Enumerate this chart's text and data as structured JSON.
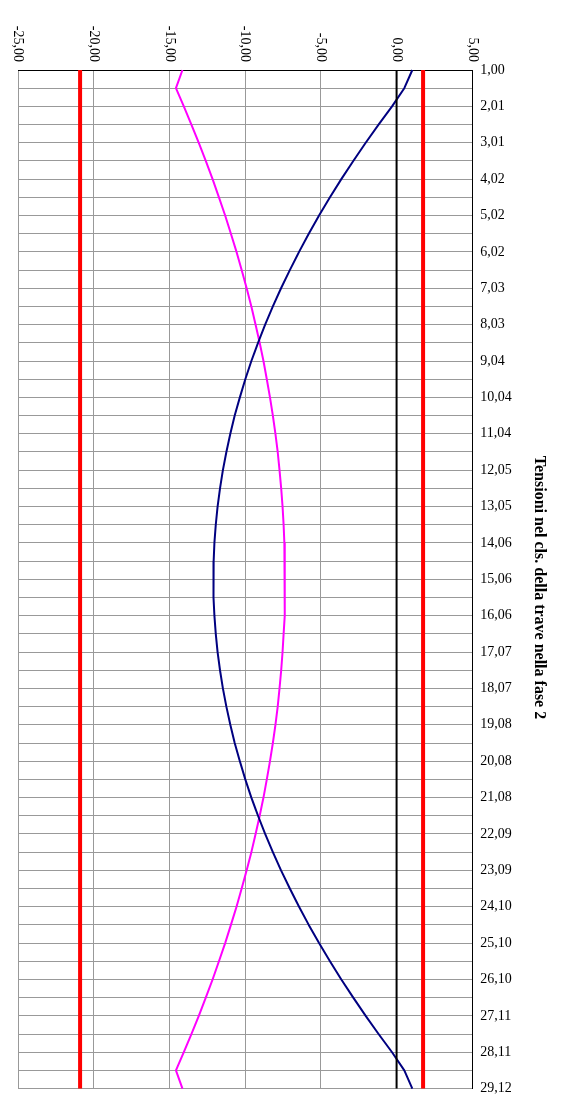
{
  "chart_data": {
    "type": "line",
    "orientation": "horizontal",
    "title": "Tensioni nel cls. della trave nella fase 2",
    "categories": [
      "1,00",
      null,
      "2,01",
      null,
      "3,01",
      null,
      "4,02",
      null,
      "5,02",
      null,
      "6,02",
      null,
      "7,03",
      null,
      "8,03",
      null,
      "9,04",
      null,
      "10,04",
      null,
      "11,04",
      null,
      "12,05",
      null,
      "13,05",
      null,
      "14,06",
      null,
      "15,06",
      null,
      "16,06",
      null,
      "17,07",
      null,
      "18,07",
      null,
      "19,08",
      null,
      "20,08",
      null,
      "21,08",
      null,
      "22,09",
      null,
      "23,09",
      null,
      "24,10",
      null,
      "25,10",
      null,
      "26,10",
      null,
      "27,11",
      null,
      "28,11",
      null,
      "29,12"
    ],
    "series": [
      {
        "color": "#000080",
        "values": [
          1.04,
          0.51,
          -0.3,
          -1.19,
          -2.04,
          -2.86,
          -3.65,
          -4.4,
          -5.12,
          -5.8,
          -6.44,
          -7.05,
          -7.63,
          -8.17,
          -8.68,
          -9.15,
          -9.59,
          -9.99,
          -10.35,
          -10.69,
          -10.98,
          -11.24,
          -11.47,
          -11.66,
          -11.82,
          -11.94,
          -12.03,
          -12.08,
          -12.1,
          -12.08,
          -12.03,
          -11.94,
          -11.82,
          -11.66,
          -11.47,
          -11.24,
          -10.98,
          -10.69,
          -10.35,
          -9.99,
          -9.59,
          -9.15,
          -8.68,
          -8.17,
          -7.63,
          -7.05,
          -6.44,
          -5.8,
          -5.12,
          -4.4,
          -3.65,
          -2.86,
          -2.04,
          -1.19,
          -0.3,
          0.51,
          1.04
        ]
      },
      {
        "color": "#ff00ff",
        "values": [
          -14.14,
          -14.57,
          -14.05,
          -13.55,
          -13.06,
          -12.6,
          -12.15,
          -11.73,
          -11.32,
          -10.94,
          -10.57,
          -10.23,
          -9.9,
          -9.59,
          -9.31,
          -9.04,
          -8.79,
          -8.57,
          -8.36,
          -8.17,
          -8.0,
          -7.85,
          -7.73,
          -7.62,
          -7.53,
          -7.46,
          -7.41,
          -7.38,
          -7.37,
          -7.38,
          -7.41,
          -7.46,
          -7.53,
          -7.62,
          -7.73,
          -7.85,
          -8.0,
          -8.17,
          -8.36,
          -8.57,
          -8.79,
          -9.04,
          -9.31,
          -9.59,
          -9.9,
          -10.23,
          -10.57,
          -10.94,
          -11.32,
          -11.73,
          -12.15,
          -12.6,
          -13.06,
          -13.55,
          -14.05,
          -14.57,
          -14.14
        ]
      }
    ],
    "xlim": [
      -25,
      5
    ],
    "xticks": [
      {
        "value": -25,
        "label": "-25,00"
      },
      {
        "value": -20,
        "label": "-20,00"
      },
      {
        "value": -15,
        "label": "-15,00"
      },
      {
        "value": -10,
        "label": "-10,00"
      },
      {
        "value": -5,
        "label": "-5,00"
      },
      {
        "value": 0,
        "label": "0,00"
      },
      {
        "value": 5,
        "label": "5,00"
      }
    ],
    "ref_lines": [
      {
        "axis": "x",
        "value": -20.9,
        "color": "#ff0000"
      },
      {
        "axis": "x",
        "value": 1.75,
        "color": "#ff0000"
      },
      {
        "axis": "x",
        "value": 0,
        "color": "#000000"
      }
    ],
    "grid": true,
    "legend": false,
    "marker": "none",
    "line_style": "solid"
  }
}
